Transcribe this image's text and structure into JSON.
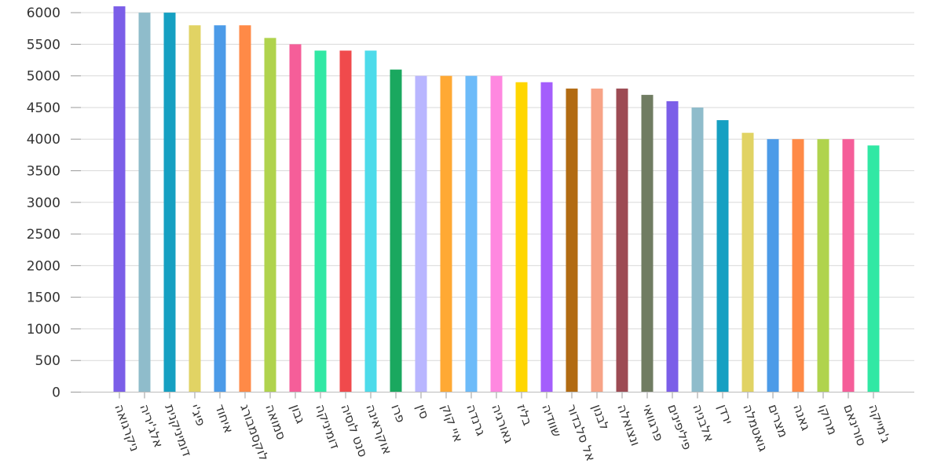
{
  "chart_data": {
    "type": "bar",
    "categories": [
      "ניקרגואה",
      "אלג'יריה",
      "דומיניקנית",
      "פיג'י",
      "איחוד",
      "לוקסמבורג",
      "סמואה",
      "גבון",
      "דומיניקה",
      "סנט לוסיה",
      "אוקראינה",
      "פרו",
      "סין",
      "איי קוק",
      "גרנדה",
      "גאורגיה",
      "בליז",
      "שוודיה",
      "אל סלבדור",
      "לבנון",
      "ונצואלה",
      "פרגוואי",
      "פיליפינים",
      "אלבניה",
      "ירדן",
      "גואטמלה",
      "מצרים",
      "גאנה",
      "מרוקו",
      "סורינאם",
      "ג'מייקה"
    ],
    "values": [
      6100,
      6000,
      6000,
      5800,
      5800,
      5800,
      5600,
      5500,
      5400,
      5400,
      5400,
      5100,
      5000,
      5000,
      5000,
      5000,
      4900,
      4900,
      4800,
      4800,
      4800,
      4700,
      4600,
      4500,
      4300,
      4100,
      4000,
      4000,
      4000,
      4000,
      3900
    ],
    "colors": [
      "#7b5ee8",
      "#8fbccb",
      "#16a0c2",
      "#e1d364",
      "#4c9be8",
      "#ff8a47",
      "#b0d34d",
      "#f55e99",
      "#31e8a4",
      "#f04a4c",
      "#4ddbea",
      "#1aa85f",
      "#b9b6ff",
      "#ffa934",
      "#6dbbf9",
      "#ff88e0",
      "#ffd600",
      "#a45efc",
      "#b26b12",
      "#f7a386",
      "#9d4b54",
      "#707c62",
      "#7b5ee8",
      "#8fbccb",
      "#16a0c2",
      "#e1d364",
      "#4c9be8",
      "#ff8a47",
      "#b0d34d",
      "#f55e99",
      "#31e8a4"
    ],
    "yticks": [
      0,
      500,
      1000,
      1500,
      2000,
      2500,
      3000,
      3500,
      4000,
      4500,
      5000,
      5500,
      6000
    ],
    "ylim": [
      0,
      6200
    ],
    "grid": true,
    "title": "",
    "xlabel": "",
    "ylabel": ""
  }
}
